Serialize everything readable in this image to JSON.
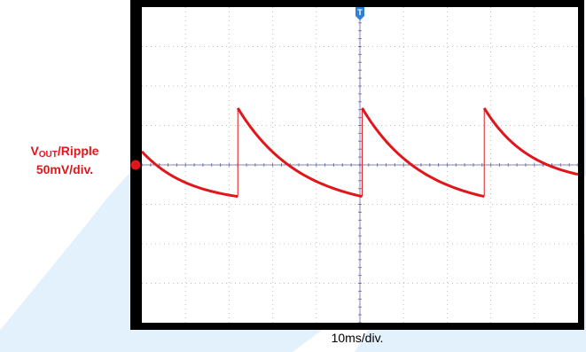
{
  "channel_label": {
    "signal_prefix": "V",
    "signal_subscript": "OUT",
    "signal_suffix": "/Ripple",
    "scale": "50mV/div."
  },
  "timebase_label": "10ms/div.",
  "markers": {
    "trigger": "T",
    "channel": "2"
  },
  "colors": {
    "trace": "#e0161b",
    "trigger_marker": "#2f7fd6",
    "grid": "#c0c0c0",
    "zero_axis": "#3a3a8a",
    "watermark": "#e3f1fc",
    "frame": "#000000"
  },
  "chart_data": {
    "type": "line",
    "title": "",
    "xlabel": "10ms/div.",
    "ylabel": "VOUT/Ripple 50mV/div.",
    "x_divisions": 10,
    "y_divisions": 8,
    "x_unit": "ms",
    "y_unit": "mV",
    "x_range_ms": [
      0,
      100
    ],
    "y_range_mV": [
      -200,
      200
    ],
    "grid": true,
    "series": [
      {
        "name": "VOUT/Ripple",
        "segments": [
          {
            "t_start_ms": 0,
            "t_end_ms": 22,
            "v_start_mV": 17,
            "v_end_mV": -40
          },
          {
            "t_start_ms": 22,
            "t_end_ms": 50.5,
            "v_start_mV": 72,
            "v_end_mV": -40
          },
          {
            "t_start_ms": 50.5,
            "t_end_ms": 78.5,
            "v_start_mV": 72,
            "v_end_mV": -40
          },
          {
            "t_start_ms": 78.5,
            "t_end_ms": 100,
            "v_start_mV": 72,
            "v_end_mV": -12
          }
        ]
      }
    ]
  }
}
